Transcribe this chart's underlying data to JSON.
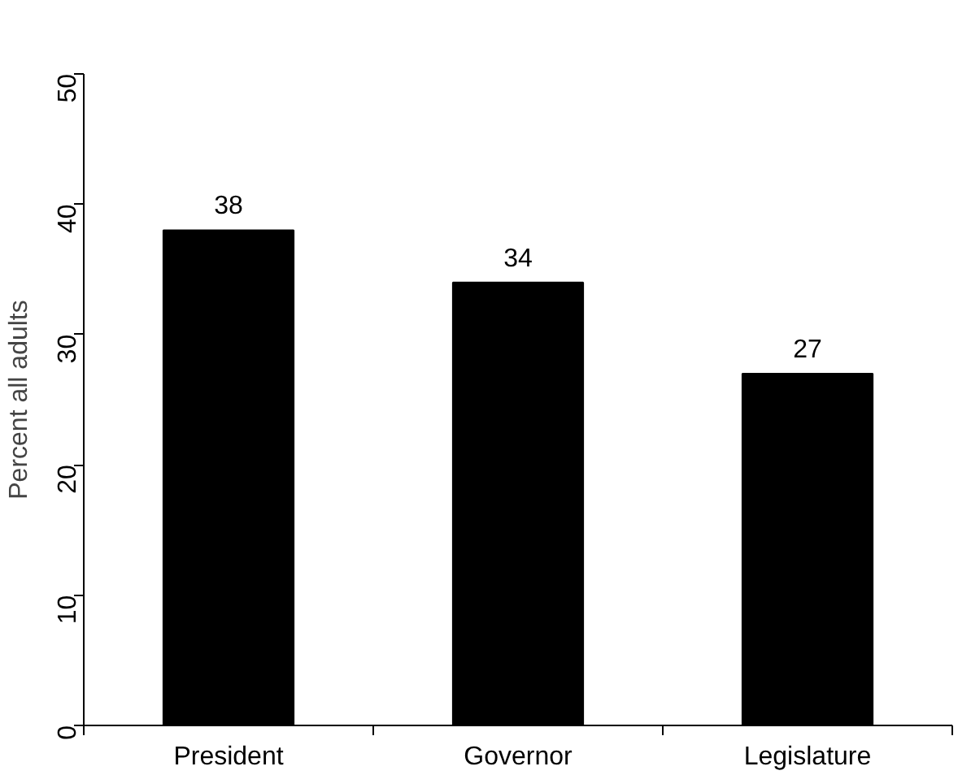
{
  "chart_data": {
    "type": "bar",
    "ylabel": "Percent all adults",
    "categories": [
      "President",
      "Governor",
      "Legislature"
    ],
    "values": [
      38,
      34,
      27
    ],
    "color": "#000000",
    "ylim": [
      0,
      50
    ],
    "yticks": [
      0,
      10,
      20,
      30,
      40,
      50
    ],
    "grid": false,
    "data_labels": true
  }
}
